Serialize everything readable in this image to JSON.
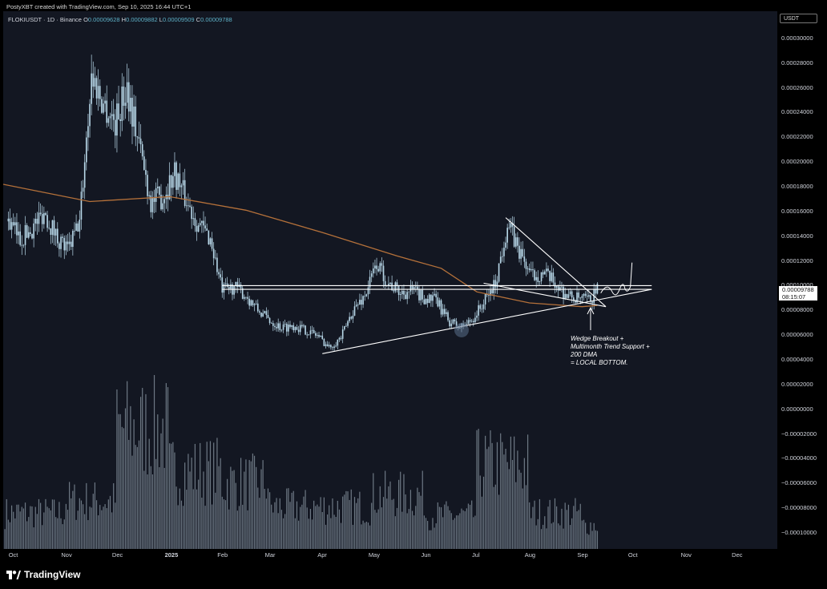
{
  "header": {
    "credit": "PostyXBT created with TradingView.com, Sep 10, 2025 16:44 UTC+1"
  },
  "legend": {
    "symbol": "FLOKIUSDT · 1D · Binance",
    "open_key": "O",
    "open": "0.00009628",
    "high_key": "H",
    "high": "0.00009882",
    "low_key": "L",
    "low": "0.00009509",
    "close_key": "C",
    "close": "0.00009788"
  },
  "axis": {
    "currency": "USDT",
    "y_ticks": [
      "0.00030000",
      "0.00028000",
      "0.00026000",
      "0.00024000",
      "0.00022000",
      "0.00020000",
      "0.00018000",
      "0.00016000",
      "0.00014000",
      "0.00012000",
      "0.00010000",
      "0.00008000",
      "0.00006000",
      "0.00004000",
      "0.00002000",
      "0.00000000",
      "−0.00002000",
      "−0.00004000",
      "−0.00006000",
      "−0.00008000",
      "−0.00010000"
    ],
    "x_ticks": [
      "Oct",
      "Nov",
      "Dec",
      "2025",
      "Feb",
      "Mar",
      "Apr",
      "May",
      "Jun",
      "Jul",
      "Aug",
      "Sep",
      "Oct",
      "Nov",
      "Dec"
    ]
  },
  "price_label": {
    "price": "0.00009788",
    "countdown": "08:15:07"
  },
  "annotation": {
    "text": "Wedge Breakout +\nMultimonth Trend Support +\n200 DMA\n= LOCAL BOTTOM."
  },
  "brand": {
    "name": "TradingView"
  },
  "colors": {
    "background": "#131722",
    "candles": "#b9d9ea",
    "ma200": "#b5713a",
    "drawing": "#ffffff",
    "volume": "#8c9aa6"
  },
  "chart_data": {
    "type": "candlestick",
    "symbol": "FLOKIUSDT",
    "interval": "1D",
    "exchange": "Binance",
    "ylim": [
      -0.000113,
      0.000322
    ],
    "x_range": [
      "2024-09-25",
      "2025-12-25"
    ],
    "series": [
      {
        "kind": "price",
        "x": [
          "2024-09-28",
          "2024-10-05",
          "2024-10-12",
          "2024-10-19",
          "2024-10-26",
          "2024-11-02",
          "2024-11-09",
          "2024-11-16",
          "2024-11-23",
          "2024-11-30",
          "2024-12-07",
          "2024-12-14",
          "2024-12-21",
          "2024-12-28",
          "2025-01-04",
          "2025-01-11",
          "2025-01-18",
          "2025-01-25",
          "2025-02-01",
          "2025-02-08",
          "2025-02-15",
          "2025-02-22",
          "2025-03-01",
          "2025-03-08",
          "2025-03-15",
          "2025-03-22",
          "2025-03-29",
          "2025-04-05",
          "2025-04-12",
          "2025-04-19",
          "2025-04-26",
          "2025-05-03",
          "2025-05-10",
          "2025-05-17",
          "2025-05-24",
          "2025-05-31",
          "2025-06-07",
          "2025-06-14",
          "2025-06-21",
          "2025-06-28",
          "2025-07-05",
          "2025-07-12",
          "2025-07-19",
          "2025-07-26",
          "2025-08-02",
          "2025-08-09",
          "2025-08-16",
          "2025-08-23",
          "2025-08-30",
          "2025-09-06",
          "2025-09-10"
        ],
        "close": [
          0.000152,
          0.000138,
          0.000146,
          0.00016,
          0.000141,
          0.000128,
          0.000152,
          0.00027,
          0.000248,
          0.000232,
          0.000262,
          0.000215,
          0.000168,
          0.000172,
          0.000192,
          0.000168,
          0.00015,
          0.000138,
          9.6e-05,
          9.9e-05,
          9.2e-05,
          8e-05,
          7.2e-05,
          6.6e-05,
          6.8e-05,
          6.4e-05,
          6e-05,
          5e-05,
          5.8e-05,
          8e-05,
          9.2e-05,
          0.000118,
          0.000102,
          9.4e-05,
          9.6e-05,
          9e-05,
          8.8e-05,
          7.2e-05,
          6.6e-05,
          7.2e-05,
          8.6e-05,
          0.000102,
          0.00015,
          0.000128,
          0.000108,
          0.00011,
          0.000102,
          9.2e-05,
          8.9e-05,
          8.8e-05,
          9.8e-05
        ]
      },
      {
        "kind": "ma",
        "name": "200 DMA",
        "x": [
          "2024-09-25",
          "2024-11-15",
          "2025-01-01",
          "2025-02-15",
          "2025-04-01",
          "2025-05-15",
          "2025-06-10",
          "2025-07-01",
          "2025-08-01",
          "2025-09-01",
          "2025-09-10"
        ],
        "values": [
          0.000182,
          0.000168,
          0.000172,
          0.000161,
          0.000143,
          0.000124,
          0.000114,
          9.5e-05,
          8.6e-05,
          8.3e-05,
          8.4e-05
        ]
      },
      {
        "kind": "volume",
        "x": [
          "2024-10",
          "2024-11",
          "2024-12",
          "2025-01",
          "2025-02",
          "2025-03",
          "2025-04",
          "2025-05",
          "2025-06",
          "2025-07",
          "2025-08",
          "2025-09"
        ],
        "values": [
          0.3,
          0.4,
          1.0,
          0.65,
          0.55,
          0.35,
          0.35,
          0.45,
          0.28,
          0.7,
          0.3,
          0.2
        ]
      }
    ],
    "drawings": [
      {
        "kind": "trendline",
        "name": "multimonth support",
        "from": [
          "2025-04-01",
          4.5e-05
        ],
        "to": [
          "2025-10-12",
          9.7e-05
        ]
      },
      {
        "kind": "trendline",
        "name": "wedge top",
        "from": [
          "2025-07-18",
          0.000155
        ],
        "to": [
          "2025-09-15",
          8.3e-05
        ]
      },
      {
        "kind": "trendline",
        "name": "wedge bottom",
        "from": [
          "2025-07-05",
          0.000102
        ],
        "to": [
          "2025-09-15",
          8.3e-05
        ]
      },
      {
        "kind": "horizontal",
        "name": "resistance band",
        "from": [
          "2025-02-01",
          0.0001
        ],
        "to": [
          "2025-10-12",
          0.0001
        ]
      },
      {
        "kind": "horizontal",
        "name": "resistance band",
        "from": [
          "2025-02-01",
          9.7e-05
        ],
        "to": [
          "2025-10-12",
          9.7e-05
        ]
      }
    ]
  }
}
